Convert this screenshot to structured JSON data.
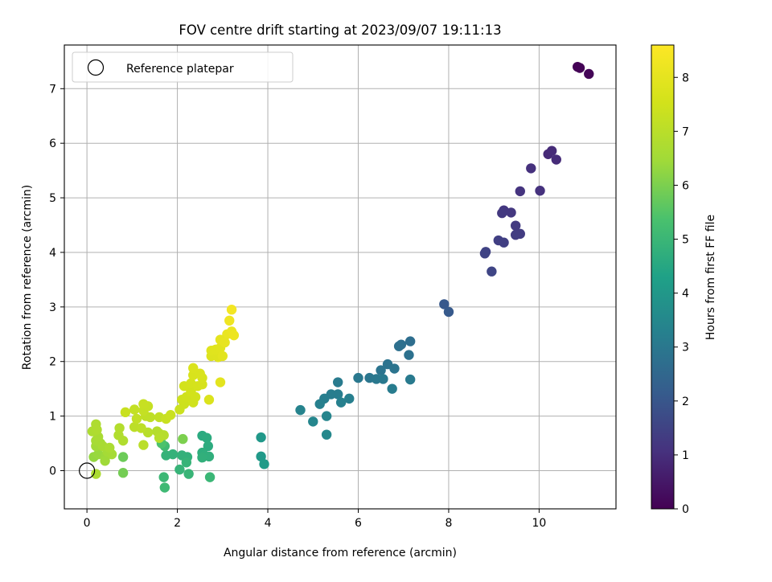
{
  "chart_data": {
    "type": "scatter",
    "title": "FOV centre drift starting at 2023/09/07 19:11:13",
    "xlabel": "Angular distance from reference (arcmin)",
    "ylabel": "Rotation from reference (arcmin)",
    "xlim": [
      -0.5,
      11.7
    ],
    "ylim": [
      -0.7,
      7.8
    ],
    "xticks": [
      0,
      2,
      4,
      6,
      8,
      10
    ],
    "yticks": [
      0,
      1,
      2,
      3,
      4,
      5,
      6,
      7
    ],
    "grid": true,
    "legend": {
      "placement": "top-left",
      "entries": [
        "Reference platepar"
      ]
    },
    "reference_point": {
      "x": 0,
      "y": 0,
      "label": "Reference platepar"
    },
    "colorbar": {
      "label": "Hours from first FF file",
      "range": [
        0,
        8.6
      ],
      "ticks": [
        0,
        1,
        2,
        3,
        4,
        5,
        6,
        7,
        8
      ],
      "colormap": "viridis"
    },
    "points": [
      {
        "x": 10.85,
        "y": 7.4,
        "h": 0.02
      },
      {
        "x": 10.9,
        "y": 7.38,
        "h": 0.05
      },
      {
        "x": 11.1,
        "y": 7.27,
        "h": 0.08
      },
      {
        "x": 10.2,
        "y": 5.8,
        "h": 0.9
      },
      {
        "x": 10.28,
        "y": 5.86,
        "h": 0.92
      },
      {
        "x": 10.38,
        "y": 5.7,
        "h": 0.95
      },
      {
        "x": 9.82,
        "y": 5.54,
        "h": 1.05
      },
      {
        "x": 10.02,
        "y": 5.13,
        "h": 1.08
      },
      {
        "x": 9.58,
        "y": 5.12,
        "h": 1.12
      },
      {
        "x": 9.22,
        "y": 4.77,
        "h": 1.2
      },
      {
        "x": 9.38,
        "y": 4.73,
        "h": 1.22
      },
      {
        "x": 9.18,
        "y": 4.72,
        "h": 1.25
      },
      {
        "x": 9.48,
        "y": 4.49,
        "h": 1.3
      },
      {
        "x": 9.58,
        "y": 4.34,
        "h": 1.32
      },
      {
        "x": 9.48,
        "y": 4.32,
        "h": 1.35
      },
      {
        "x": 9.1,
        "y": 4.22,
        "h": 1.4
      },
      {
        "x": 9.22,
        "y": 4.18,
        "h": 1.42
      },
      {
        "x": 8.82,
        "y": 4.01,
        "h": 1.5
      },
      {
        "x": 8.8,
        "y": 3.98,
        "h": 1.52
      },
      {
        "x": 8.95,
        "y": 3.65,
        "h": 1.55
      },
      {
        "x": 7.9,
        "y": 3.05,
        "h": 2.05
      },
      {
        "x": 8.0,
        "y": 2.91,
        "h": 2.1
      },
      {
        "x": 7.15,
        "y": 2.37,
        "h": 2.7
      },
      {
        "x": 6.95,
        "y": 2.31,
        "h": 2.72
      },
      {
        "x": 6.9,
        "y": 2.28,
        "h": 2.75
      },
      {
        "x": 7.12,
        "y": 2.12,
        "h": 2.8
      },
      {
        "x": 6.65,
        "y": 1.95,
        "h": 2.85
      },
      {
        "x": 6.8,
        "y": 1.87,
        "h": 2.88
      },
      {
        "x": 6.5,
        "y": 1.84,
        "h": 2.9
      },
      {
        "x": 6.25,
        "y": 1.7,
        "h": 2.95
      },
      {
        "x": 6.0,
        "y": 1.7,
        "h": 3.0
      },
      {
        "x": 6.4,
        "y": 1.68,
        "h": 3.02
      },
      {
        "x": 6.55,
        "y": 1.68,
        "h": 3.05
      },
      {
        "x": 7.15,
        "y": 1.67,
        "h": 3.08
      },
      {
        "x": 5.55,
        "y": 1.62,
        "h": 3.1
      },
      {
        "x": 6.75,
        "y": 1.5,
        "h": 3.12
      },
      {
        "x": 5.4,
        "y": 1.4,
        "h": 3.15
      },
      {
        "x": 5.55,
        "y": 1.4,
        "h": 3.17
      },
      {
        "x": 5.25,
        "y": 1.32,
        "h": 3.2
      },
      {
        "x": 5.8,
        "y": 1.32,
        "h": 3.22
      },
      {
        "x": 5.62,
        "y": 1.25,
        "h": 3.25
      },
      {
        "x": 5.15,
        "y": 1.22,
        "h": 3.27
      },
      {
        "x": 4.72,
        "y": 1.11,
        "h": 3.35
      },
      {
        "x": 5.3,
        "y": 1.0,
        "h": 3.4
      },
      {
        "x": 5.0,
        "y": 0.9,
        "h": 3.45
      },
      {
        "x": 5.3,
        "y": 0.66,
        "h": 3.5
      },
      {
        "x": 3.85,
        "y": 0.61,
        "h": 4.0
      },
      {
        "x": 3.85,
        "y": 0.26,
        "h": 4.05
      },
      {
        "x": 3.92,
        "y": 0.12,
        "h": 4.1
      },
      {
        "x": 2.55,
        "y": 0.64,
        "h": 4.6
      },
      {
        "x": 2.65,
        "y": 0.6,
        "h": 4.62
      },
      {
        "x": 2.68,
        "y": 0.45,
        "h": 4.65
      },
      {
        "x": 2.55,
        "y": 0.33,
        "h": 4.7
      },
      {
        "x": 2.6,
        "y": 0.28,
        "h": 4.72
      },
      {
        "x": 2.7,
        "y": 0.26,
        "h": 4.75
      },
      {
        "x": 2.55,
        "y": 0.24,
        "h": 4.78
      },
      {
        "x": 2.22,
        "y": 0.25,
        "h": 4.8
      },
      {
        "x": 2.1,
        "y": 0.28,
        "h": 4.82
      },
      {
        "x": 1.9,
        "y": 0.3,
        "h": 4.85
      },
      {
        "x": 1.75,
        "y": 0.28,
        "h": 4.88
      },
      {
        "x": 2.2,
        "y": 0.15,
        "h": 4.9
      },
      {
        "x": 2.05,
        "y": 0.02,
        "h": 4.92
      },
      {
        "x": 2.25,
        "y": -0.06,
        "h": 4.95
      },
      {
        "x": 2.72,
        "y": -0.12,
        "h": 5.0
      },
      {
        "x": 1.7,
        "y": -0.12,
        "h": 5.05
      },
      {
        "x": 1.72,
        "y": -0.31,
        "h": 5.1
      },
      {
        "x": 1.72,
        "y": 0.45,
        "h": 5.15
      },
      {
        "x": 1.65,
        "y": 0.5,
        "h": 5.4
      },
      {
        "x": 0.8,
        "y": 0.25,
        "h": 5.8
      },
      {
        "x": 0.8,
        "y": -0.04,
        "h": 5.9
      },
      {
        "x": 2.12,
        "y": 0.58,
        "h": 6.0
      },
      {
        "x": 0.15,
        "y": 0.25,
        "h": 6.3
      },
      {
        "x": 0.25,
        "y": 0.3,
        "h": 6.35
      },
      {
        "x": 0.4,
        "y": 0.25,
        "h": 6.4
      },
      {
        "x": 0.4,
        "y": 0.18,
        "h": 6.45
      },
      {
        "x": 0.2,
        "y": 0.45,
        "h": 6.5
      },
      {
        "x": 0.3,
        "y": 0.5,
        "h": 6.52
      },
      {
        "x": 0.45,
        "y": 0.35,
        "h": 6.55
      },
      {
        "x": 0.55,
        "y": 0.3,
        "h": 6.58
      },
      {
        "x": 0.2,
        "y": 0.55,
        "h": 6.6
      },
      {
        "x": 0.35,
        "y": 0.45,
        "h": 6.62
      },
      {
        "x": 0.25,
        "y": 0.62,
        "h": 6.65
      },
      {
        "x": 0.5,
        "y": 0.42,
        "h": 6.68
      },
      {
        "x": 0.2,
        "y": -0.06,
        "h": 6.7
      },
      {
        "x": 0.12,
        "y": 0.72,
        "h": 6.72
      },
      {
        "x": 0.2,
        "y": 0.85,
        "h": 6.75
      },
      {
        "x": 0.22,
        "y": 0.75,
        "h": 6.78
      },
      {
        "x": 0.8,
        "y": 0.55,
        "h": 6.8
      },
      {
        "x": 0.7,
        "y": 0.65,
        "h": 6.82
      },
      {
        "x": 0.72,
        "y": 0.78,
        "h": 6.85
      },
      {
        "x": 1.55,
        "y": 0.72,
        "h": 6.88
      },
      {
        "x": 1.6,
        "y": 0.68,
        "h": 6.9
      },
      {
        "x": 1.7,
        "y": 0.65,
        "h": 6.92
      },
      {
        "x": 1.6,
        "y": 0.6,
        "h": 6.95
      },
      {
        "x": 1.35,
        "y": 0.7,
        "h": 6.97
      },
      {
        "x": 1.25,
        "y": 0.47,
        "h": 7.0
      },
      {
        "x": 1.05,
        "y": 0.8,
        "h": 7.05
      },
      {
        "x": 1.2,
        "y": 0.78,
        "h": 7.08
      },
      {
        "x": 1.4,
        "y": 0.98,
        "h": 7.1
      },
      {
        "x": 1.3,
        "y": 1.0,
        "h": 7.12
      },
      {
        "x": 1.6,
        "y": 0.98,
        "h": 7.15
      },
      {
        "x": 1.1,
        "y": 0.95,
        "h": 7.18
      },
      {
        "x": 1.05,
        "y": 1.12,
        "h": 7.2
      },
      {
        "x": 1.25,
        "y": 1.1,
        "h": 7.22
      },
      {
        "x": 1.35,
        "y": 1.18,
        "h": 7.25
      },
      {
        "x": 1.25,
        "y": 1.22,
        "h": 7.28
      },
      {
        "x": 0.85,
        "y": 1.07,
        "h": 7.3
      },
      {
        "x": 1.75,
        "y": 0.95,
        "h": 7.32
      },
      {
        "x": 1.85,
        "y": 1.02,
        "h": 7.35
      },
      {
        "x": 2.05,
        "y": 1.12,
        "h": 7.38
      },
      {
        "x": 2.15,
        "y": 1.22,
        "h": 7.4
      },
      {
        "x": 2.1,
        "y": 1.3,
        "h": 7.42
      },
      {
        "x": 2.2,
        "y": 1.35,
        "h": 7.45
      },
      {
        "x": 2.35,
        "y": 1.25,
        "h": 7.48
      },
      {
        "x": 2.4,
        "y": 1.35,
        "h": 7.5
      },
      {
        "x": 2.3,
        "y": 1.45,
        "h": 7.52
      },
      {
        "x": 2.15,
        "y": 1.55,
        "h": 7.55
      },
      {
        "x": 2.3,
        "y": 1.6,
        "h": 7.58
      },
      {
        "x": 2.45,
        "y": 1.55,
        "h": 7.6
      },
      {
        "x": 2.55,
        "y": 1.58,
        "h": 7.62
      },
      {
        "x": 2.55,
        "y": 1.7,
        "h": 7.65
      },
      {
        "x": 2.35,
        "y": 1.75,
        "h": 7.68
      },
      {
        "x": 2.5,
        "y": 1.78,
        "h": 7.7
      },
      {
        "x": 2.35,
        "y": 1.88,
        "h": 7.72
      },
      {
        "x": 2.7,
        "y": 1.3,
        "h": 7.75
      },
      {
        "x": 2.75,
        "y": 2.1,
        "h": 7.8
      },
      {
        "x": 2.9,
        "y": 2.08,
        "h": 7.82
      },
      {
        "x": 2.75,
        "y": 2.2,
        "h": 7.85
      },
      {
        "x": 2.85,
        "y": 2.22,
        "h": 7.88
      },
      {
        "x": 2.95,
        "y": 2.25,
        "h": 7.9
      },
      {
        "x": 3.0,
        "y": 2.1,
        "h": 7.92
      },
      {
        "x": 2.95,
        "y": 1.62,
        "h": 7.95
      },
      {
        "x": 3.1,
        "y": 2.5,
        "h": 8.1
      },
      {
        "x": 3.2,
        "y": 2.55,
        "h": 8.15
      },
      {
        "x": 3.25,
        "y": 2.48,
        "h": 8.2
      },
      {
        "x": 3.15,
        "y": 2.75,
        "h": 8.25
      },
      {
        "x": 3.2,
        "y": 2.95,
        "h": 8.35
      },
      {
        "x": 2.95,
        "y": 2.4,
        "h": 8.0
      },
      {
        "x": 3.05,
        "y": 2.35,
        "h": 8.05
      }
    ]
  }
}
